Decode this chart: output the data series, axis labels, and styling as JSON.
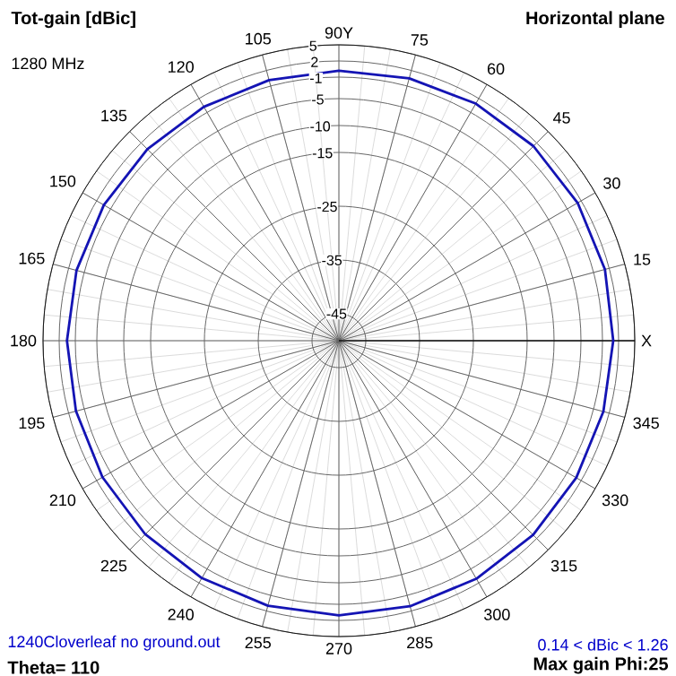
{
  "chart_data": {
    "type": "radar",
    "title": "Tot-gain [dBic]",
    "subtitle": "1280 MHz",
    "categories": [
      "90Y",
      "75",
      "60",
      "45",
      "30",
      "15",
      "X",
      "345",
      "330",
      "315",
      "300",
      "285",
      "270",
      "255",
      "240",
      "225",
      "210",
      "195",
      "180",
      "165",
      "150",
      "135",
      "120",
      "105"
    ],
    "series": [
      {
        "color": "#1414b4",
        "values": [
          0.2,
          0.5,
          0.9,
          1.15,
          1.25,
          1.2,
          1.0,
          0.9,
          0.95,
          1.05,
          1.1,
          1.1,
          1.05,
          1.0,
          0.95,
          0.9,
          0.75,
          0.6,
          0.55,
          0.5,
          0.45,
          0.35,
          0.2,
          0.15
        ]
      }
    ],
    "ylim": [
      -50,
      5
    ],
    "yticks": [
      5,
      2,
      -1,
      -5,
      -10,
      -15,
      -25,
      -35,
      -45
    ],
    "grid": true,
    "annotations": [
      "Horizontal plane",
      "1240Cloverleaf no ground.out",
      "0.14 < dBic < 1.26",
      "Theta= 110",
      "Max gain Phi:25"
    ]
  }
}
